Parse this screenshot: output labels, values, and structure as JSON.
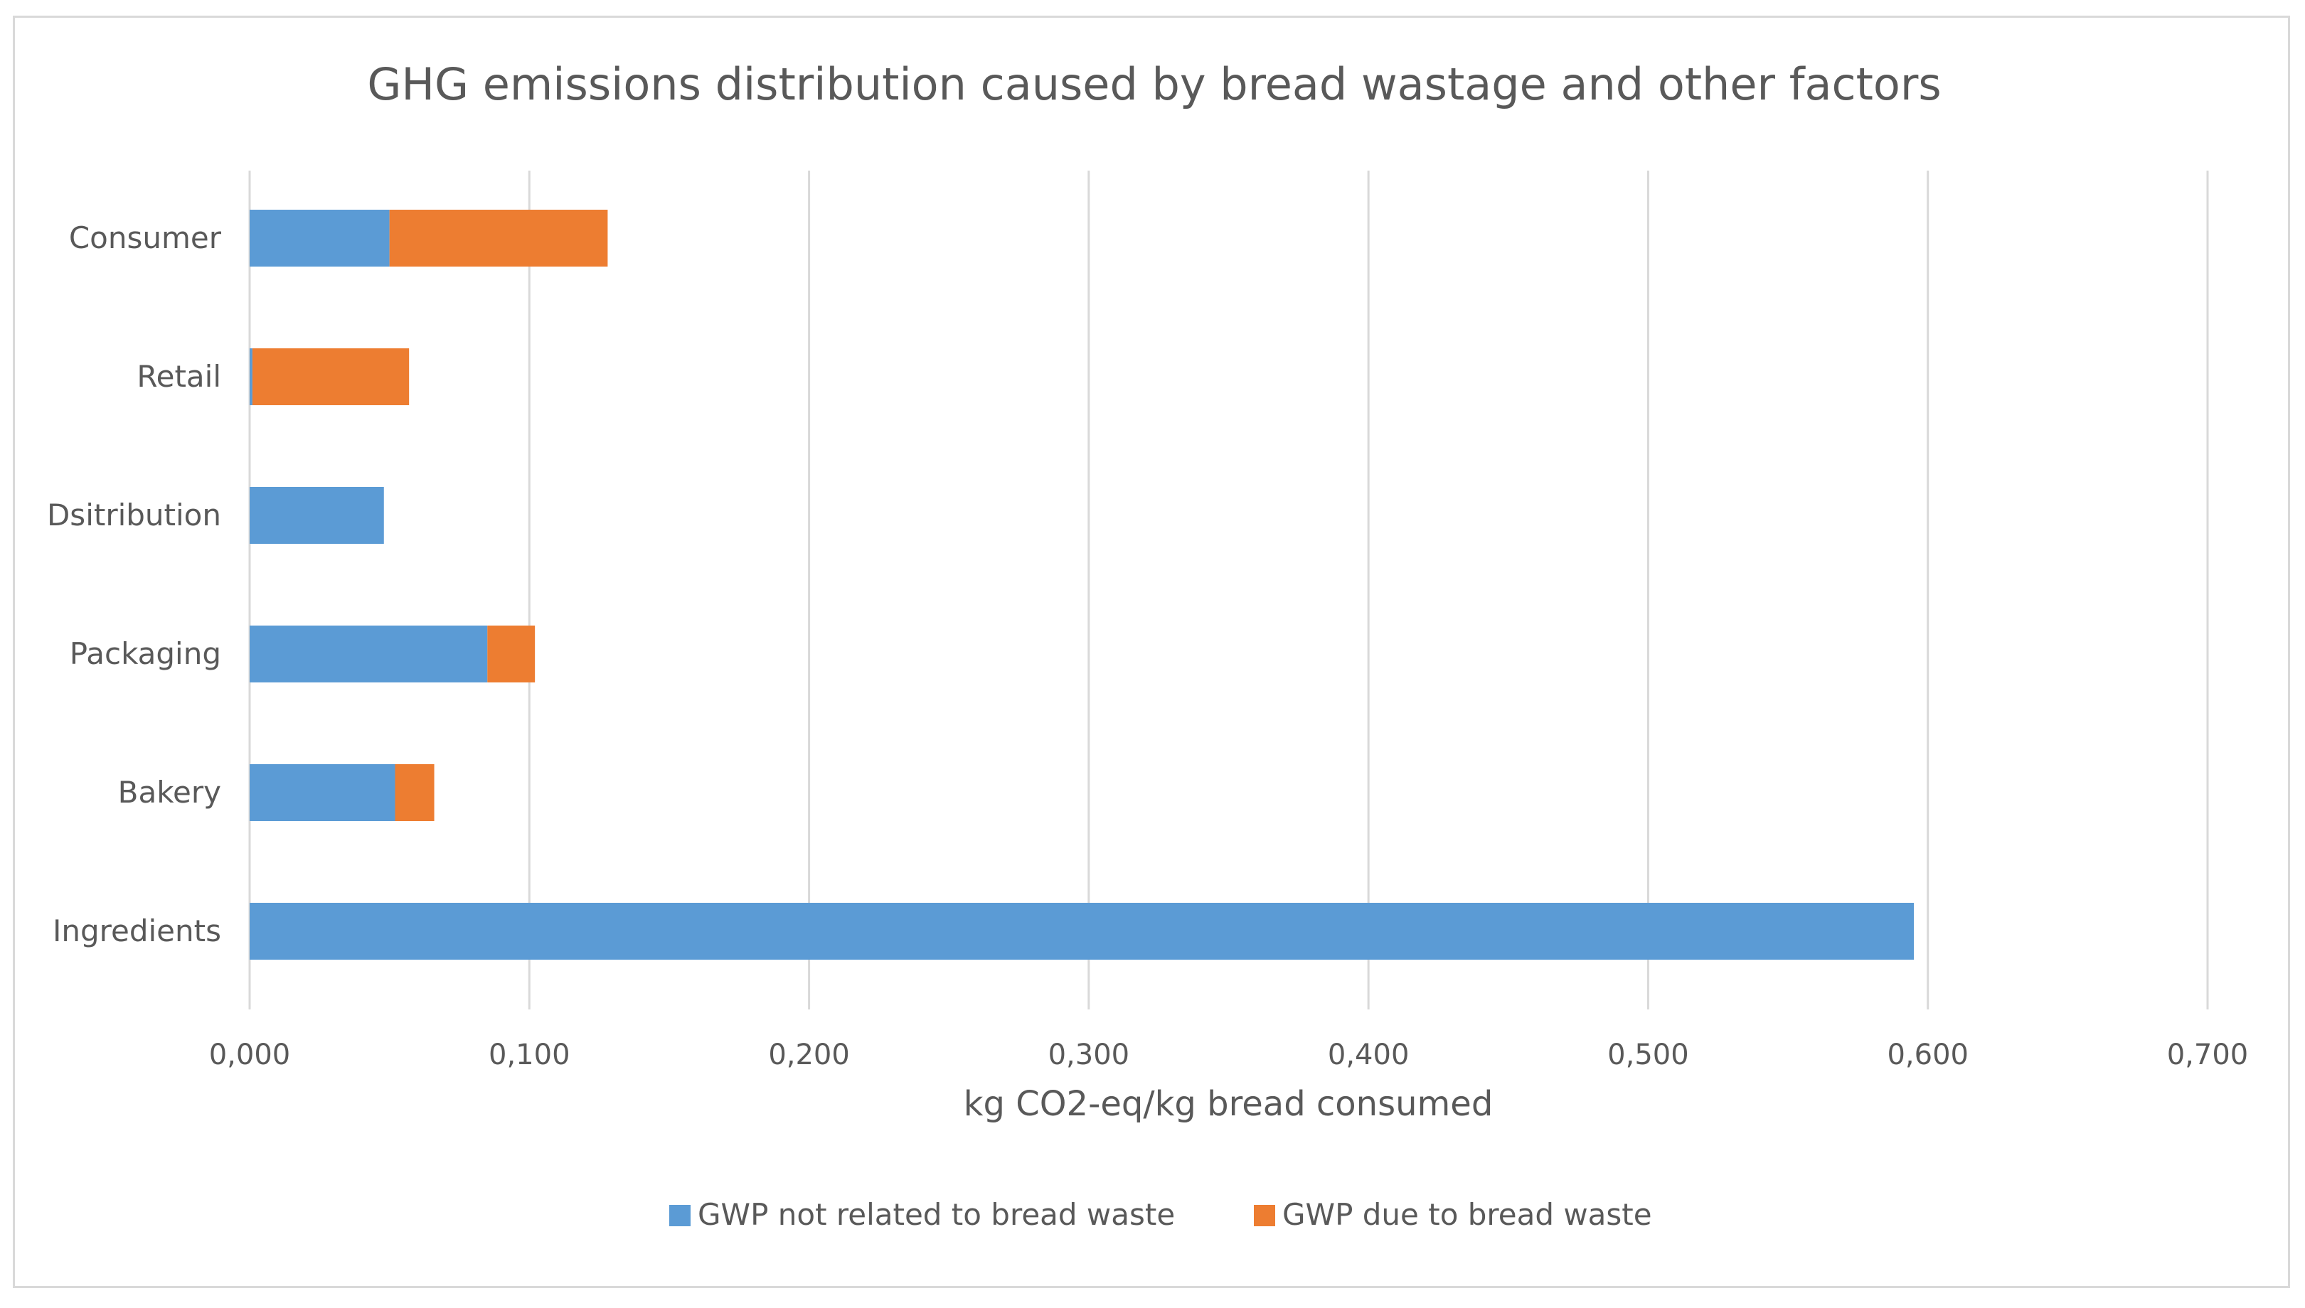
{
  "chart_data": {
    "type": "bar",
    "orientation": "horizontal",
    "stacked": true,
    "title": "GHG emissions distribution caused by bread wastage and other factors",
    "xlabel": "kg CO2-eq/kg bread consumed",
    "ylabel": "",
    "xlim": [
      0,
      0.7
    ],
    "x_ticks": [
      0,
      0.1,
      0.2,
      0.3,
      0.4,
      0.5,
      0.6,
      0.7
    ],
    "x_tick_labels": [
      "0,000",
      "0,100",
      "0,200",
      "0,300",
      "0,400",
      "0,500",
      "0,600",
      "0,700"
    ],
    "grid": true,
    "legend_position": "bottom",
    "categories": [
      "Consumer",
      "Retail",
      "Dsitribution",
      "Packaging",
      "Bakery",
      "Ingredients"
    ],
    "series": [
      {
        "name": "GWP not related to bread waste",
        "color": "#5b9bd5",
        "values": [
          0.05,
          0.001,
          0.048,
          0.085,
          0.052,
          0.595
        ]
      },
      {
        "name": "GWP due to bread waste",
        "color": "#ed7d31",
        "values": [
          0.078,
          0.056,
          0.0,
          0.017,
          0.014,
          0.0
        ]
      }
    ]
  }
}
